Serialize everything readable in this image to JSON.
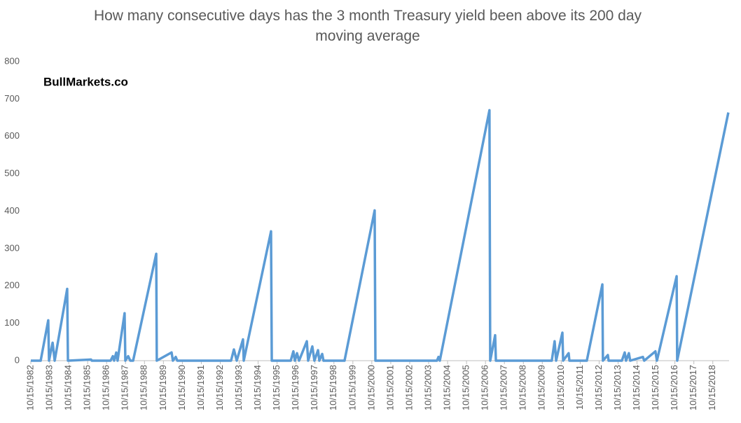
{
  "chart_data": {
    "type": "line",
    "title": "How many consecutive days has the 3 month Treasury yield been above its 200 day moving average",
    "annotation": "BullMarkets.co",
    "color": "#5b9bd5",
    "x": [
      1982.79,
      1983.31,
      1983.71,
      1983.75,
      1983.94,
      1984.05,
      1984.71,
      1984.75,
      1985.97,
      1986.01,
      1987.0,
      1987.12,
      1987.19,
      1987.3,
      1987.37,
      1987.74,
      1987.78,
      1987.93,
      1988.04,
      1988.19,
      1989.41,
      1989.44,
      1990.22,
      1990.29,
      1990.44,
      1990.52,
      1993.36,
      1993.51,
      1993.66,
      1993.99,
      1994.03,
      1995.47,
      1995.51,
      1996.51,
      1996.65,
      1996.73,
      1996.84,
      1996.95,
      1997.36,
      1997.43,
      1997.65,
      1997.76,
      1997.95,
      1998.02,
      1998.17,
      1998.24,
      1999.35,
      2000.94,
      2000.98,
      2004.23,
      2004.31,
      2004.38,
      2007.0,
      2007.04,
      2007.3,
      2007.34,
      2010.29,
      2010.44,
      2010.52,
      2010.85,
      2010.89,
      2011.18,
      2011.22,
      2012.14,
      2012.96,
      2012.99,
      2013.25,
      2013.29,
      2013.99,
      2014.14,
      2014.21,
      2014.36,
      2014.43,
      2015.1,
      2015.17,
      2015.76,
      2015.84,
      2016.88,
      2016.91,
      2019.61
    ],
    "values": [
      0,
      0,
      108,
      0,
      48,
      0,
      192,
      0,
      3,
      0,
      0,
      12,
      0,
      22,
      0,
      127,
      0,
      12,
      0,
      0,
      286,
      0,
      22,
      0,
      10,
      0,
      0,
      30,
      0,
      57,
      0,
      346,
      0,
      0,
      25,
      0,
      20,
      0,
      52,
      0,
      38,
      0,
      28,
      0,
      18,
      0,
      0,
      402,
      0,
      0,
      10,
      0,
      670,
      0,
      68,
      0,
      0,
      52,
      0,
      75,
      0,
      20,
      0,
      0,
      204,
      0,
      15,
      0,
      0,
      22,
      0,
      20,
      0,
      10,
      0,
      25,
      0,
      226,
      0,
      664
    ],
    "xlim": [
      1982.79,
      2019.65
    ],
    "xticks": [
      {
        "value": 1982.79,
        "label": "10/15/1982"
      },
      {
        "value": 1983.79,
        "label": "10/15/1983"
      },
      {
        "value": 1984.79,
        "label": "10/15/1984"
      },
      {
        "value": 1985.79,
        "label": "10/15/1985"
      },
      {
        "value": 1986.79,
        "label": "10/15/1986"
      },
      {
        "value": 1987.79,
        "label": "10/15/1987"
      },
      {
        "value": 1988.79,
        "label": "10/15/1988"
      },
      {
        "value": 1989.79,
        "label": "10/15/1989"
      },
      {
        "value": 1990.79,
        "label": "10/15/1990"
      },
      {
        "value": 1991.79,
        "label": "10/15/1991"
      },
      {
        "value": 1992.79,
        "label": "10/15/1992"
      },
      {
        "value": 1993.79,
        "label": "10/15/1993"
      },
      {
        "value": 1994.79,
        "label": "10/15/1994"
      },
      {
        "value": 1995.79,
        "label": "10/15/1995"
      },
      {
        "value": 1996.79,
        "label": "10/15/1996"
      },
      {
        "value": 1997.79,
        "label": "10/15/1997"
      },
      {
        "value": 1998.79,
        "label": "10/15/1998"
      },
      {
        "value": 1999.79,
        "label": "10/15/1999"
      },
      {
        "value": 2000.79,
        "label": "10/15/2000"
      },
      {
        "value": 2001.79,
        "label": "10/15/2001"
      },
      {
        "value": 2002.79,
        "label": "10/15/2002"
      },
      {
        "value": 2003.79,
        "label": "10/15/2003"
      },
      {
        "value": 2004.79,
        "label": "10/15/2004"
      },
      {
        "value": 2005.79,
        "label": "10/15/2005"
      },
      {
        "value": 2006.79,
        "label": "10/15/2006"
      },
      {
        "value": 2007.79,
        "label": "10/15/2007"
      },
      {
        "value": 2008.79,
        "label": "10/15/2008"
      },
      {
        "value": 2009.79,
        "label": "10/15/2009"
      },
      {
        "value": 2010.79,
        "label": "10/15/2010"
      },
      {
        "value": 2011.79,
        "label": "10/15/2011"
      },
      {
        "value": 2012.79,
        "label": "10/15/2012"
      },
      {
        "value": 2013.79,
        "label": "10/15/2013"
      },
      {
        "value": 2014.79,
        "label": "10/15/2014"
      },
      {
        "value": 2015.79,
        "label": "10/15/2015"
      },
      {
        "value": 2016.79,
        "label": "10/15/2016"
      },
      {
        "value": 2017.79,
        "label": "10/15/2017"
      },
      {
        "value": 2018.79,
        "label": "10/15/2018"
      }
    ],
    "ylim": [
      0,
      800
    ],
    "yticks": [
      0,
      100,
      200,
      300,
      400,
      500,
      600,
      700,
      800
    ],
    "grid": false
  }
}
